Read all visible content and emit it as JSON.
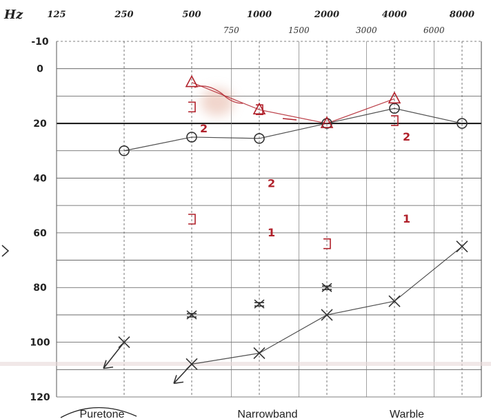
{
  "header": {
    "unit_label": "Hz",
    "freq_main": [
      "125",
      "250",
      "500",
      "1000",
      "2000",
      "4000",
      "8000"
    ],
    "freq_inter": [
      "750",
      "1500",
      "3000",
      "6000"
    ]
  },
  "y_ticks": [
    "-10",
    "0",
    "20",
    "40",
    "60",
    "80",
    "100",
    "120"
  ],
  "bottom_labels": [
    "Puretone",
    "Narrowband",
    "Warble"
  ],
  "chart_data": {
    "type": "scatter",
    "x_scale": "log",
    "xlabel": "Hz",
    "ylabel": "",
    "x_ticks": [
      125,
      250,
      500,
      1000,
      2000,
      4000,
      8000
    ],
    "y_ticks": [
      -10,
      0,
      20,
      40,
      60,
      80,
      100,
      120
    ],
    "ylim": [
      -10,
      120
    ],
    "y_inverted": true,
    "grid": true,
    "series": [
      {
        "marker": "circle",
        "color": "#333333",
        "connected": true,
        "x": [
          250,
          500,
          1000,
          2000,
          4000,
          8000
        ],
        "y": [
          30,
          25,
          25.5,
          20,
          14.5,
          20
        ]
      },
      {
        "marker": "cross",
        "color": "#333333",
        "connected": true,
        "x": [
          500,
          1000,
          2000,
          4000,
          8000
        ],
        "y": [
          108,
          104,
          90,
          85,
          65
        ]
      },
      {
        "marker": "cross-no-response",
        "color": "#333333",
        "connected": false,
        "x": [
          250
        ],
        "y": [
          100
        ]
      },
      {
        "marker": "x-stacked",
        "color": "#333333",
        "connected": false,
        "x": [
          500,
          1000,
          2000
        ],
        "y": [
          90,
          86,
          80
        ]
      },
      {
        "marker": "triangle",
        "color": "#b0202a",
        "connected": true,
        "x": [
          500,
          1000,
          2000,
          4000
        ],
        "y": [
          5,
          15,
          20,
          11
        ]
      },
      {
        "marker": "bracket",
        "color": "#b0202a",
        "connected": false,
        "x": [
          500,
          500,
          1000,
          2000,
          4000
        ],
        "y": [
          14,
          55,
          15,
          64,
          19
        ]
      }
    ],
    "annotations": [
      {
        "text": "2",
        "x": 500,
        "y": 22
      },
      {
        "text": "2",
        "x": 1000,
        "y": 42
      },
      {
        "text": "1",
        "x": 1000,
        "y": 60
      },
      {
        "text": "2",
        "x": 4000,
        "y": 25
      },
      {
        "text": "1",
        "x": 4000,
        "y": 55
      }
    ]
  }
}
